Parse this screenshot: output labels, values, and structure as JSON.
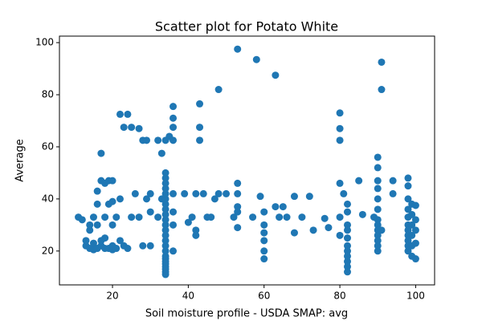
{
  "chart_data": {
    "type": "scatter",
    "title": "Scatter plot for Potato White",
    "x_label": "Soil moisture profile - USDA SMAP: avg",
    "y_label": "Average",
    "color": "#1f77b4",
    "xlim": [
      6,
      105
    ],
    "ylim": [
      7,
      102.5
    ],
    "xticks": [
      20,
      40,
      60,
      80,
      100
    ],
    "yticks": [
      20,
      40,
      60,
      80,
      100
    ],
    "x": [
      11,
      12,
      13,
      13,
      14,
      14,
      15,
      15,
      16,
      16,
      17,
      17,
      18,
      18,
      19,
      20,
      20,
      21,
      14,
      15,
      16,
      16,
      17,
      18,
      19,
      20,
      17,
      18,
      19,
      20,
      20,
      21,
      22,
      22,
      24,
      23,
      25,
      27,
      28,
      29,
      22,
      23,
      24,
      25,
      26,
      27,
      28,
      29,
      30,
      30,
      30,
      32,
      32,
      33,
      33,
      34,
      34,
      34,
      34,
      34,
      34,
      34,
      34,
      34,
      34,
      34,
      34,
      34,
      34,
      34,
      34,
      34,
      34,
      34,
      34,
      34,
      34,
      34,
      34,
      34,
      35,
      36,
      36,
      36,
      36,
      36,
      36,
      36,
      36,
      39,
      40,
      41,
      42,
      42,
      42,
      43,
      43,
      43,
      44,
      45,
      46,
      47,
      48,
      48,
      50,
      52,
      53,
      53,
      53,
      53,
      53,
      53,
      57,
      58,
      59,
      60,
      60,
      60,
      60,
      60,
      60,
      63,
      63,
      64,
      65,
      66,
      68,
      68,
      70,
      72,
      73,
      76,
      77,
      80,
      80,
      80,
      80,
      80,
      80,
      81,
      82,
      82,
      82,
      82,
      82,
      82,
      82,
      82,
      82,
      82,
      82,
      85,
      86,
      89,
      90,
      90,
      90,
      90,
      90,
      90,
      90,
      90,
      90,
      90,
      90,
      90,
      90,
      91,
      91,
      91,
      94,
      94,
      98,
      98,
      98,
      98,
      98,
      98,
      98,
      98,
      98,
      98,
      98,
      99,
      99,
      99,
      99,
      99,
      99,
      100,
      100,
      100,
      100,
      100
    ],
    "values": [
      33,
      32,
      22,
      24,
      21,
      28,
      20.5,
      23,
      21,
      30,
      22,
      24,
      21,
      25,
      21,
      20.5,
      22,
      21,
      30,
      33,
      38,
      43,
      47,
      46,
      47,
      47,
      57.5,
      33,
      38,
      39,
      30,
      33,
      40,
      72.5,
      72.5,
      67.5,
      67.5,
      67,
      62.5,
      62.5,
      24,
      22,
      21,
      33,
      42,
      33,
      22,
      40,
      22,
      35,
      42,
      62.5,
      33,
      40,
      57.5,
      11,
      12,
      13,
      14,
      15,
      16,
      17,
      18,
      20,
      22,
      24,
      26,
      28,
      30,
      32,
      34,
      36,
      38,
      40,
      42,
      44,
      46,
      48,
      50,
      62.5,
      64,
      75.5,
      71,
      67.5,
      62.5,
      42,
      35,
      30,
      20,
      42,
      31,
      33,
      42,
      28,
      26,
      76.5,
      67.5,
      62.5,
      42,
      33,
      33,
      40,
      82,
      42,
      42,
      33,
      97.5,
      46,
      42,
      37,
      29,
      35,
      33,
      93.5,
      41,
      35,
      30,
      27,
      24,
      20,
      17,
      87.5,
      37,
      33,
      37,
      33,
      41,
      27,
      33,
      41,
      28,
      32.5,
      29,
      73,
      67,
      62.5,
      46,
      33,
      26,
      42,
      38,
      35,
      30,
      28,
      25,
      22,
      20,
      18,
      16,
      14,
      12,
      47,
      34,
      33,
      56,
      52,
      47,
      44,
      40,
      36,
      32,
      30,
      28,
      26,
      24,
      22,
      20,
      92.5,
      82,
      28,
      47,
      42,
      48,
      45,
      40,
      36,
      33,
      30,
      28,
      26,
      24,
      22,
      20,
      38,
      34,
      30,
      26,
      22,
      18,
      37.5,
      32,
      28,
      23,
      17
    ]
  }
}
